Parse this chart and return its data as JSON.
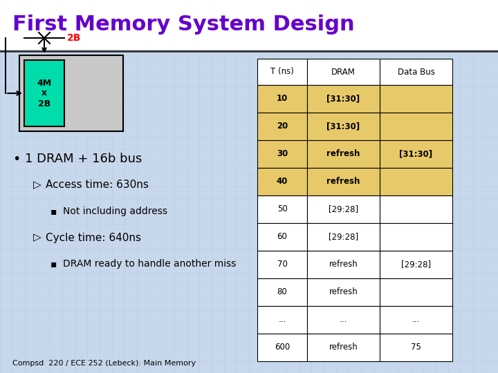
{
  "title": "First Memory System Design",
  "title_color": "#6600CC",
  "slide_bg": "#C8D8EC",
  "title_bg": "#FFFFFF",
  "dram_label": "2B",
  "dram_label_color": "#FF0000",
  "chip_label": "4M\nx\n2B",
  "chip_color": "#00DDAA",
  "chip_bg": "#C8C8C8",
  "bullet_text": "1 DRAM + 16b bus",
  "sub_bullets": [
    "Access time: 630ns",
    "Not including address",
    "Cycle time: 640ns",
    "DRAM ready to handle another miss"
  ],
  "footer": "Compsd  220 / ECE 252 (Lebeck): Main Memory",
  "table_headers": [
    "T (ns)",
    "DRAM",
    "Data Bus"
  ],
  "table_rows": [
    [
      "10",
      "[31:30]",
      ""
    ],
    [
      "20",
      "[31:30]",
      ""
    ],
    [
      "30",
      "refresh",
      "[31:30]"
    ],
    [
      "40",
      "refresh",
      ""
    ],
    [
      "50",
      "[29:28]",
      ""
    ],
    [
      "60",
      "[29:28]",
      ""
    ],
    [
      "70",
      "refresh",
      "[29:28]"
    ],
    [
      "80",
      "refresh",
      ""
    ],
    [
      "...",
      "...",
      "..."
    ],
    [
      "600",
      "refresh",
      "75"
    ]
  ],
  "table_highlight_rows": [
    0,
    1,
    2,
    3
  ],
  "highlight_color": "#E8C96A",
  "bold_highlight_rows": [
    0,
    1,
    2,
    3
  ]
}
